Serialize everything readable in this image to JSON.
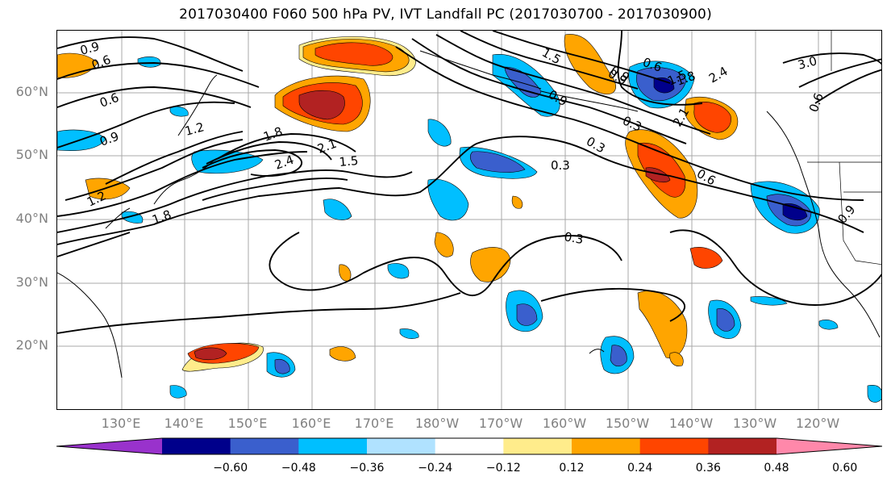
{
  "title": "2017030400 F060 500 hPa PV, IVT Landfall PC (2017030700 - 2017030900)",
  "lat_labels": [
    {
      "text": "60°N",
      "lat": 60
    },
    {
      "text": "50°N",
      "lat": 50
    },
    {
      "text": "40°N",
      "lat": 40
    },
    {
      "text": "30°N",
      "lat": 30
    },
    {
      "text": "20°N",
      "lat": 20
    }
  ],
  "lon_labels": [
    "130°E",
    "140°E",
    "150°E",
    "160°E",
    "170°E",
    "180°W",
    "170°W",
    "160°W",
    "150°W",
    "140°W",
    "130°W",
    "120°W"
  ],
  "colorbar": {
    "colors": [
      "#9932cc",
      "#00008b",
      "#3a5fcd",
      "#00bfff",
      "#b0e2ff",
      "#ffffff",
      "#ffec8b",
      "#ffa500",
      "#ff4500",
      "#b22222",
      "#ff88aa"
    ],
    "ticks": [
      "−0.60",
      "−0.48",
      "−0.36",
      "−0.24",
      "−0.12",
      "0.12",
      "0.24",
      "0.36",
      "0.48",
      "0.60"
    ]
  },
  "contour_labels": [
    "0.9",
    "0.6",
    "0.6",
    "0.9",
    "1.2",
    "1.8",
    "2.1",
    "2.4",
    "1.5",
    "0.3",
    "0.3",
    "1.5",
    "0.9",
    "0.6",
    "0.3",
    "0.9",
    "1.5",
    "0.6",
    "2.1",
    "1.8",
    "2.4",
    "3.0",
    "0.6",
    "0.9",
    "1.2",
    "1.8",
    "0.9",
    "0.3"
  ]
}
